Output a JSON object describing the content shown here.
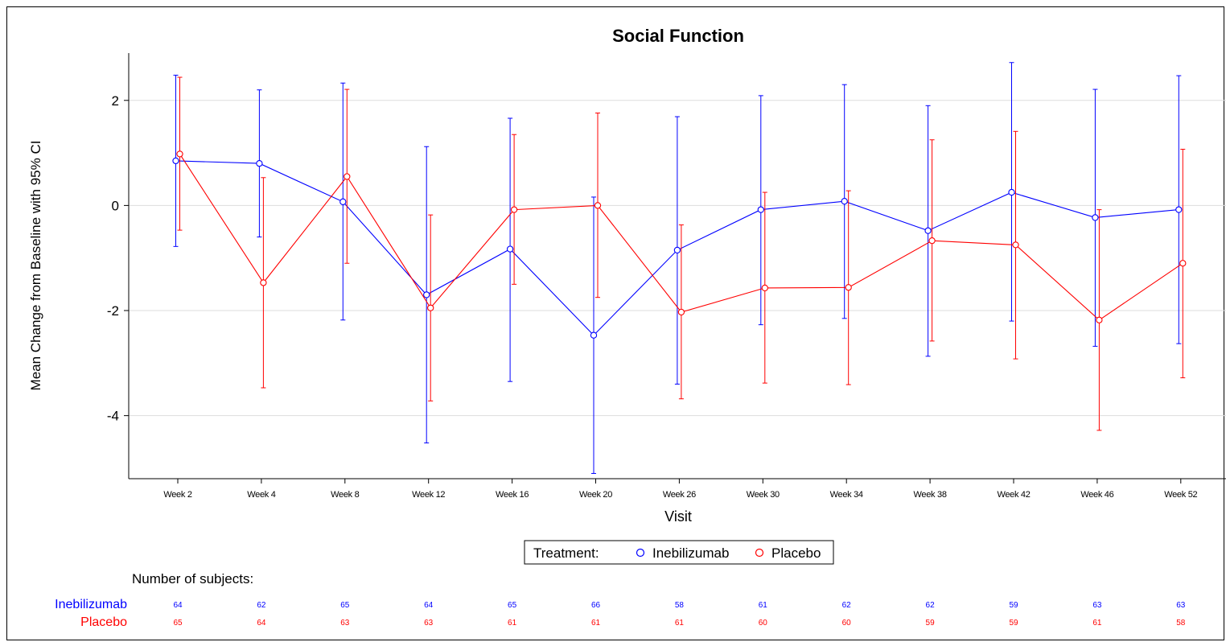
{
  "chart_data": {
    "type": "line",
    "title": "Social Function",
    "xlabel": "Visit",
    "ylabel": "Mean Change from Baseline with 95% CI",
    "categories": [
      "Week 2",
      "Week 4",
      "Week 8",
      "Week 12",
      "Week 16",
      "Week 20",
      "Week 26",
      "Week 30",
      "Week 34",
      "Week 38",
      "Week 42",
      "Week 46",
      "Week 52"
    ],
    "ylim": [
      -5.2,
      2.9
    ],
    "yticks": [
      2,
      0,
      -2,
      -4
    ],
    "ytick_labels": [
      "2",
      "0",
      "-2",
      "-4"
    ],
    "grid": true,
    "legend": {
      "title": "Treatment:",
      "placement": "bottom-center"
    },
    "series": [
      {
        "name": "Inebilizumab",
        "color": "#0000ff",
        "values": [
          0.85,
          0.8,
          0.07,
          -1.7,
          -0.83,
          -2.47,
          -0.85,
          -0.08,
          0.08,
          -0.48,
          0.25,
          -0.23,
          -0.08
        ],
        "lower": [
          -0.78,
          -0.6,
          -2.18,
          -4.52,
          -3.35,
          -5.1,
          -3.4,
          -2.27,
          -2.15,
          -2.87,
          -2.2,
          -2.68,
          -2.63
        ],
        "upper": [
          2.48,
          2.2,
          2.33,
          1.12,
          1.66,
          0.16,
          1.69,
          2.09,
          2.3,
          1.9,
          2.72,
          2.21,
          2.47
        ]
      },
      {
        "name": "Placebo",
        "color": "#ff0000",
        "values": [
          0.98,
          -1.47,
          0.55,
          -1.95,
          -0.08,
          0.0,
          -2.03,
          -1.57,
          -1.56,
          -0.67,
          -0.75,
          -2.18,
          -1.1
        ],
        "lower": [
          -0.47,
          -3.47,
          -1.1,
          -3.72,
          -1.5,
          -1.75,
          -3.68,
          -3.38,
          -3.41,
          -2.58,
          -2.92,
          -4.28,
          -3.28
        ],
        "upper": [
          2.44,
          0.53,
          2.21,
          -0.18,
          1.35,
          1.76,
          -0.37,
          0.25,
          0.28,
          1.25,
          1.41,
          -0.08,
          1.07
        ]
      }
    ],
    "subjects": {
      "heading": "Number of subjects:",
      "rows": [
        {
          "name": "Inebilizumab",
          "color": "#0000ff",
          "counts": [
            "64",
            "62",
            "65",
            "64",
            "65",
            "66",
            "58",
            "61",
            "62",
            "62",
            "59",
            "63",
            "63"
          ]
        },
        {
          "name": "Placebo",
          "color": "#ff0000",
          "counts": [
            "65",
            "64",
            "63",
            "63",
            "61",
            "61",
            "61",
            "60",
            "60",
            "59",
            "59",
            "61",
            "58"
          ]
        }
      ]
    }
  }
}
